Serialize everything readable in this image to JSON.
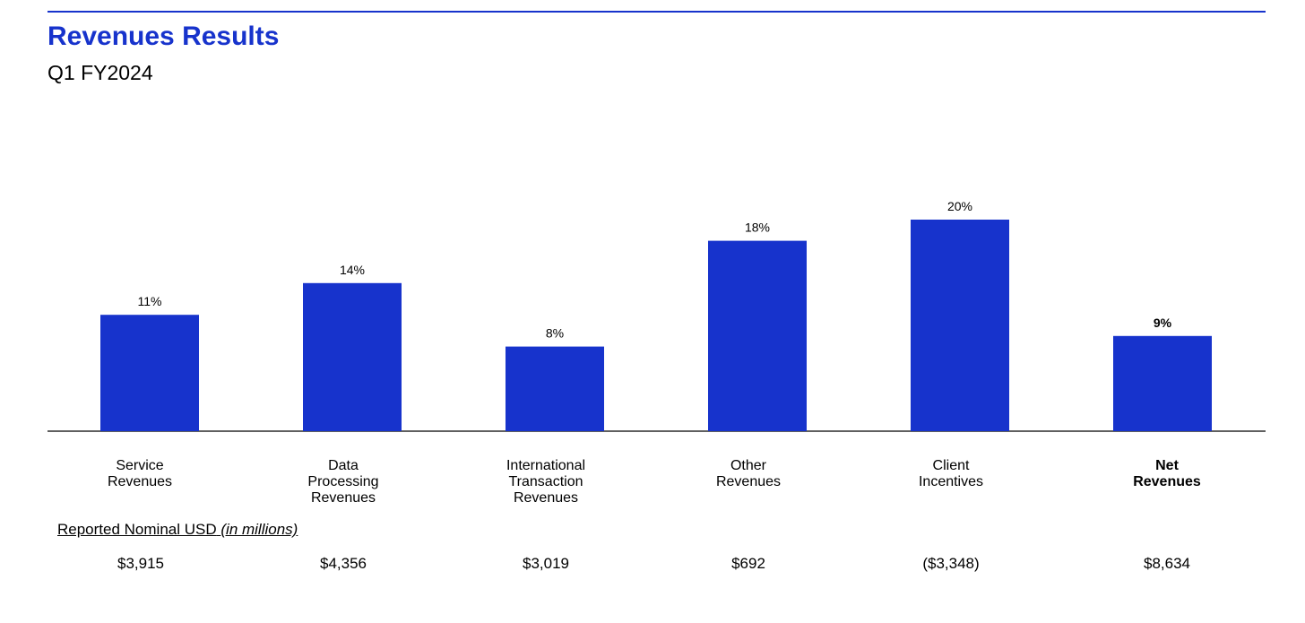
{
  "header": {
    "title": "Revenues Results",
    "subtitle": "Q1 FY2024"
  },
  "footer": {
    "label_main": "Reported Nominal USD",
    "label_unit": "(in millions)"
  },
  "colors": {
    "accent": "#1733cc",
    "bar": "#1733cc"
  },
  "chart_data": {
    "type": "bar",
    "categories": [
      "Service\nRevenues",
      "Data\nProcessing\nRevenues",
      "International\nTransaction\nRevenues",
      "Other\nRevenues",
      "Client\nIncentives",
      "Net\nRevenues"
    ],
    "values": [
      11,
      14,
      8,
      18,
      20,
      9
    ],
    "data_labels": [
      "11%",
      "14%",
      "8%",
      "18%",
      "20%",
      "9%"
    ],
    "bold_categories": [
      false,
      false,
      false,
      false,
      false,
      true
    ],
    "nominal_usd": [
      "$3,915",
      "$4,356",
      "$3,019",
      "$692",
      "($3,348)",
      "$8,634"
    ],
    "ylim": [
      0,
      20
    ],
    "title": "",
    "xlabel": "",
    "ylabel": "",
    "grid": false,
    "legend": "none"
  }
}
